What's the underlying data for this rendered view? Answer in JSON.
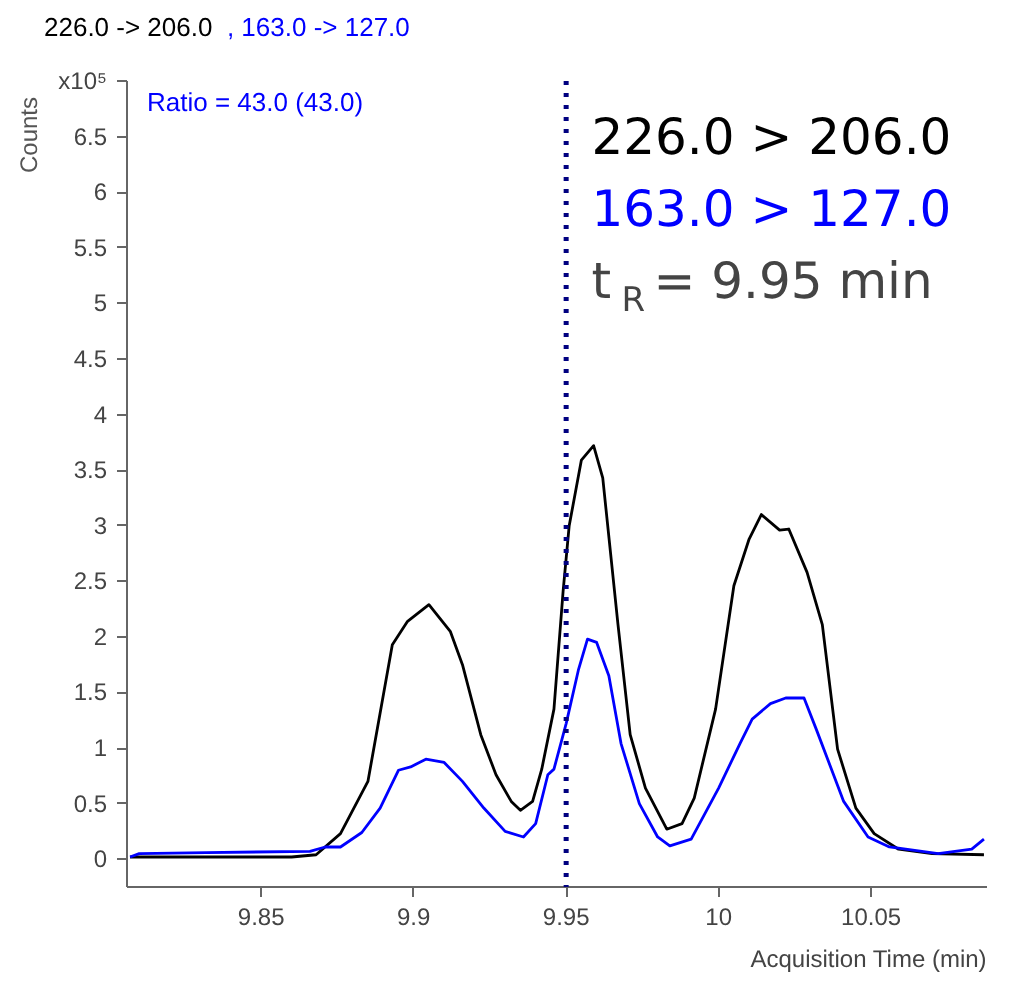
{
  "chart_data": {
    "type": "line",
    "title": "226.0 -> 206.0",
    "subtitle": ", 163.0 -> 127.0",
    "ylabel": "Counts",
    "xlabel": "Acquisition Time (min)",
    "annotations": [
      "Ratio = 43.0  (43.0)"
    ],
    "xlim": [
      9.806,
      10.088
    ],
    "xticks": [
      9.85,
      9.9,
      9.95,
      10,
      10.05
    ],
    "ylim": [
      -0.25,
      7.0
    ],
    "yticks": [
      0,
      0.5,
      1,
      1.5,
      2,
      2.5,
      3,
      3.5,
      4,
      4.5,
      5,
      5.5,
      6,
      6.5,
      {
        "value": 7,
        "label": "x10⁵"
      }
    ],
    "grid": false,
    "line_style": "solid",
    "marker": "none",
    "ref_lines": [
      {
        "axis": "x",
        "value": 9.95,
        "label": "t$_{R}$ = 9.95 min",
        "color": "#000080",
        "line_style": "dotted"
      }
    ],
    "series": [
      {
        "name": "226.0 > 206.0",
        "color": "#000000",
        "x": [
          9.807,
          9.83,
          9.86,
          9.868,
          9.876,
          9.885,
          9.893,
          9.898,
          9.905,
          9.912,
          9.916,
          9.922,
          9.927,
          9.932,
          9.935,
          9.939,
          9.942,
          9.946,
          9.949,
          9.951,
          9.955,
          9.959,
          9.962,
          9.967,
          9.971,
          9.976,
          9.983,
          9.988,
          9.992,
          9.999,
          10.005,
          10.01,
          10.014,
          10.02,
          10.023,
          10.029,
          10.034,
          10.039,
          10.045,
          10.051,
          10.059,
          10.07,
          10.087
        ],
        "values": [
          0.02,
          0.02,
          0.02,
          0.04,
          0.23,
          0.7,
          1.93,
          2.14,
          2.29,
          2.05,
          1.75,
          1.12,
          0.76,
          0.52,
          0.44,
          0.52,
          0.81,
          1.35,
          2.41,
          3.0,
          3.59,
          3.72,
          3.43,
          2.11,
          1.12,
          0.64,
          0.27,
          0.32,
          0.55,
          1.35,
          2.46,
          2.88,
          3.1,
          2.96,
          2.97,
          2.58,
          2.11,
          0.99,
          0.46,
          0.23,
          0.09,
          0.05,
          0.04
        ]
      },
      {
        "name": "163.0 > 127.0",
        "color": "#0000ff",
        "x": [
          9.807,
          9.81,
          9.832,
          9.866,
          9.871,
          9.876,
          9.883,
          9.889,
          9.895,
          9.899,
          9.904,
          9.91,
          9.916,
          9.923,
          9.93,
          9.936,
          9.94,
          9.944,
          9.946,
          9.95,
          9.954,
          9.957,
          9.96,
          9.964,
          9.968,
          9.974,
          9.98,
          9.984,
          9.991,
          10.0,
          10.007,
          10.011,
          10.017,
          10.022,
          10.028,
          10.032,
          10.041,
          10.049,
          10.056,
          10.072,
          10.083,
          10.087
        ],
        "values": [
          0.02,
          0.05,
          0.06,
          0.07,
          0.11,
          0.11,
          0.24,
          0.46,
          0.8,
          0.83,
          0.9,
          0.87,
          0.7,
          0.46,
          0.25,
          0.2,
          0.32,
          0.76,
          0.81,
          1.22,
          1.7,
          1.98,
          1.95,
          1.65,
          1.04,
          0.5,
          0.2,
          0.12,
          0.18,
          0.64,
          1.04,
          1.26,
          1.4,
          1.45,
          1.45,
          1.17,
          0.52,
          0.2,
          0.11,
          0.05,
          0.09,
          0.18
        ]
      }
    ]
  }
}
